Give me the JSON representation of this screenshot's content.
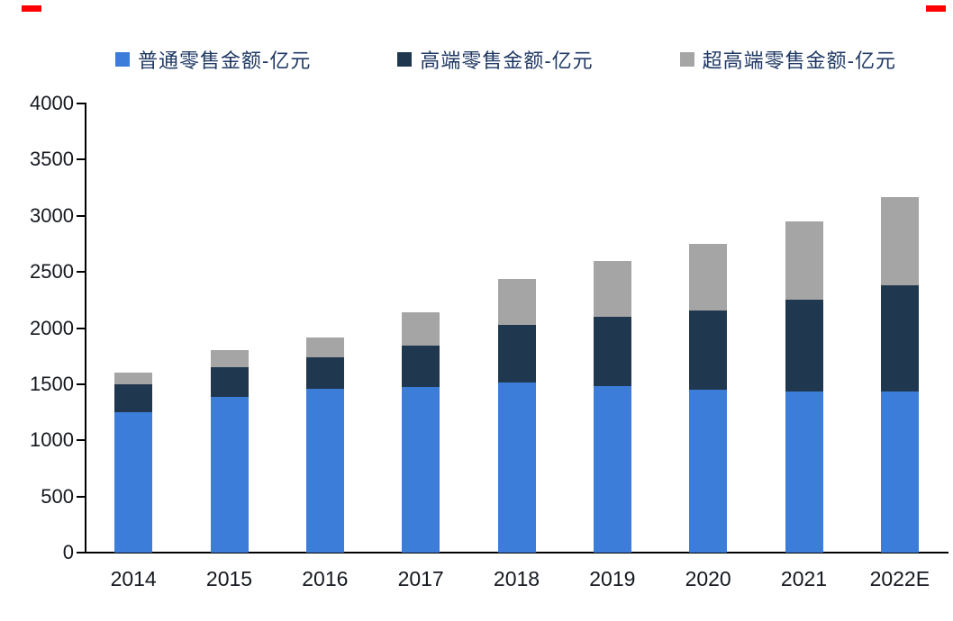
{
  "page": {
    "background": "#ffffff",
    "corner_accent_color": "#FF0000"
  },
  "legend": [
    {
      "label": "普通零售金额-亿元",
      "color": "#3B7DD8"
    },
    {
      "label": "高端零售金额-亿元",
      "color": "#20384F"
    },
    {
      "label": "超高端零售金额-亿元",
      "color": "#A5A5A5"
    }
  ],
  "chart_data": {
    "type": "bar",
    "stacked": true,
    "title": "",
    "xlabel": "",
    "ylabel": "",
    "legend_position": "top",
    "grid": false,
    "categories": [
      "2014",
      "2015",
      "2016",
      "2017",
      "2018",
      "2019",
      "2020",
      "2021",
      "2022E"
    ],
    "series": [
      {
        "name": "普通零售金额-亿元",
        "color": "#3B7DD8",
        "values": [
          1250,
          1390,
          1460,
          1475,
          1515,
          1480,
          1450,
          1435,
          1435
        ]
      },
      {
        "name": "高端零售金额-亿元",
        "color": "#20384F",
        "values": [
          250,
          260,
          280,
          365,
          515,
          620,
          710,
          820,
          945
        ]
      },
      {
        "name": "超高端零售金额-亿元",
        "color": "#A5A5A5",
        "values": [
          100,
          150,
          180,
          300,
          410,
          500,
          590,
          695,
          790
        ]
      }
    ],
    "totals": [
      1600,
      1800,
      1920,
      2140,
      2440,
      2600,
      2750,
      2950,
      3170
    ],
    "ylim": [
      0,
      4000
    ],
    "yticks": [
      0,
      500,
      1000,
      1500,
      2000,
      2500,
      3000,
      3500,
      4000
    ]
  }
}
